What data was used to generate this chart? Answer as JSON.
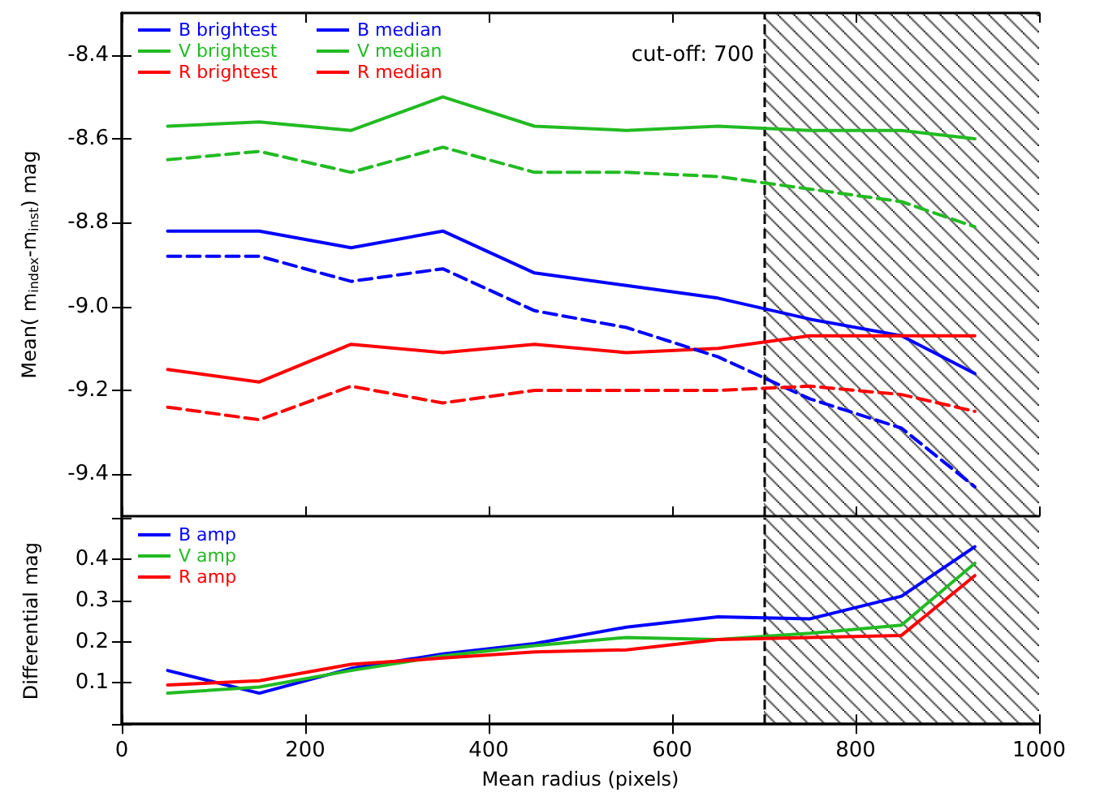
{
  "chart_data": [
    {
      "type": "line",
      "ylabel": "Mean( m$_{index}$-m$_{inst}$) mag",
      "x": [
        50,
        150,
        250,
        350,
        450,
        550,
        650,
        750,
        850,
        930
      ],
      "xlim": [
        0,
        1000
      ],
      "xticks": [
        0,
        200,
        400,
        600,
        800,
        1000
      ],
      "ylim": [
        -9.5,
        -8.3
      ],
      "yticks": [
        -9.4,
        -9.2,
        {
          "value": -9,
          "label": "-9.0"
        },
        -8.8,
        -8.6,
        -8.4
      ],
      "tick_labels": "y",
      "grid": false,
      "legend": "top left",
      "marker": "none",
      "series": [
        {
          "name": "B brightest",
          "color": "#0000ff",
          "line_style": "solid",
          "values": [
            -8.82,
            -8.82,
            -8.86,
            -8.82,
            -8.92,
            -8.95,
            -8.98,
            -9.03,
            -9.07,
            -9.16
          ]
        },
        {
          "name": "V brightest",
          "color": "#22bb22",
          "line_style": "solid",
          "values": [
            -8.57,
            -8.56,
            -8.58,
            -8.5,
            -8.57,
            -8.58,
            -8.57,
            -8.58,
            -8.58,
            -8.6
          ]
        },
        {
          "name": "R brightest",
          "color": "#ff0000",
          "line_style": "solid",
          "values": [
            -9.15,
            -9.18,
            -9.09,
            -9.11,
            -9.09,
            -9.11,
            -9.1,
            -9.07,
            -9.07,
            -9.07
          ]
        },
        {
          "name": "B median",
          "color": "#0000ff",
          "line_style": "dashed",
          "values": [
            -8.88,
            -8.88,
            -8.94,
            -8.91,
            -9.01,
            -9.05,
            -9.12,
            -9.22,
            -9.29,
            -9.43
          ]
        },
        {
          "name": "V median",
          "color": "#22bb22",
          "line_style": "dashed",
          "values": [
            -8.65,
            -8.63,
            -8.68,
            -8.62,
            -8.68,
            -8.68,
            -8.69,
            -8.72,
            -8.75,
            -8.81
          ]
        },
        {
          "name": "R median",
          "color": "#ff0000",
          "line_style": "dashed",
          "values": [
            -9.24,
            -9.27,
            -9.19,
            -9.23,
            -9.2,
            -9.2,
            -9.2,
            -9.19,
            -9.21,
            -9.25
          ]
        }
      ],
      "ref_lines": [
        {
          "axis": "x",
          "value": 700,
          "label": "cut-off: 700",
          "line_style": "dashed"
        }
      ],
      "bands": [
        {
          "axis": "x",
          "from": 700,
          "to": 1000
        }
      ]
    },
    {
      "type": "line",
      "ylabel": "Differential mag",
      "xlabel": "Mean radius (pixels)",
      "x": [
        50,
        150,
        250,
        350,
        450,
        550,
        650,
        750,
        850,
        930
      ],
      "xlim": [
        0,
        1000
      ],
      "xticks": [
        0,
        200,
        400,
        600,
        800,
        1000
      ],
      "ylim": [
        0,
        0.5
      ],
      "yticks": [
        {
          "value": 0,
          "label": null
        },
        0.1,
        0.2,
        0.3,
        0.4,
        {
          "value": 0.5,
          "label": null
        }
      ],
      "grid": false,
      "legend": "top left",
      "marker": "none",
      "series": [
        {
          "name": "B amp",
          "color": "#0000ff",
          "line_style": "solid",
          "values": [
            0.13,
            0.075,
            0.135,
            0.17,
            0.195,
            0.235,
            0.26,
            0.255,
            0.31,
            0.43
          ]
        },
        {
          "name": "V amp",
          "color": "#22bb22",
          "line_style": "solid",
          "values": [
            0.075,
            0.09,
            0.13,
            0.165,
            0.19,
            0.21,
            0.205,
            0.22,
            0.24,
            0.39
          ]
        },
        {
          "name": "R amp",
          "color": "#ff0000",
          "line_style": "solid",
          "values": [
            0.095,
            0.105,
            0.145,
            0.16,
            0.175,
            0.18,
            0.205,
            0.21,
            0.215,
            0.36
          ]
        }
      ],
      "ref_lines": [
        {
          "axis": "x",
          "value": 700,
          "label": null,
          "line_style": "dashed"
        }
      ],
      "bands": [
        {
          "axis": "x",
          "from": 700,
          "to": 1000
        }
      ]
    }
  ]
}
